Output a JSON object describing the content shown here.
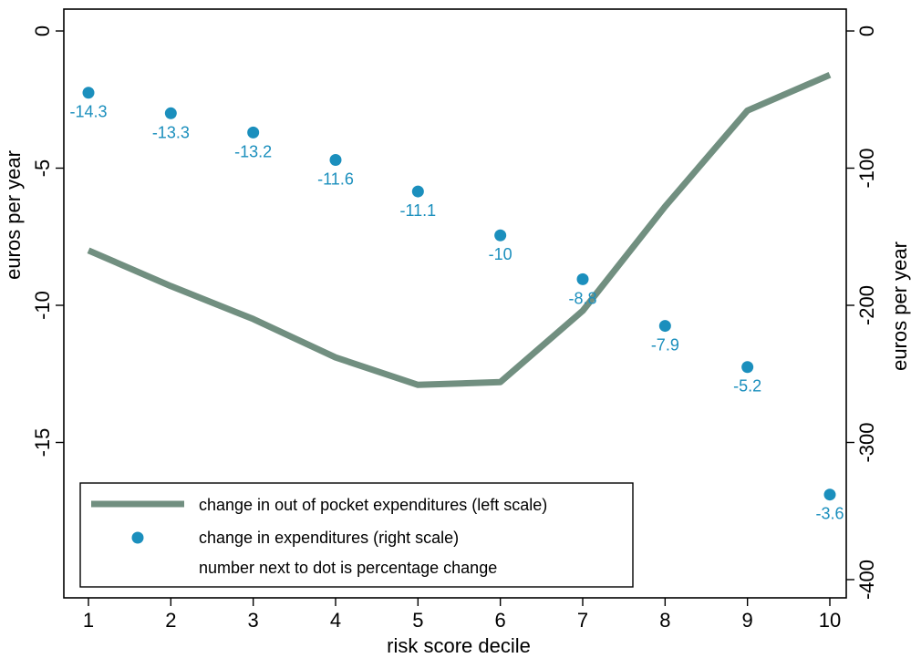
{
  "chart_data": {
    "type": "line",
    "xlabel": "risk score decile",
    "ylabel_left": "euros per year",
    "ylabel_right": "euros per year",
    "x_ticks": [
      1,
      2,
      3,
      4,
      5,
      6,
      7,
      8,
      9,
      10
    ],
    "left_axis": {
      "range": [
        -20,
        0
      ],
      "ticks": [
        0,
        -5,
        -10,
        -15
      ]
    },
    "right_axis": {
      "range": [
        -400,
        0
      ],
      "ticks": [
        0,
        -100,
        -200,
        -300,
        -400
      ]
    },
    "series": [
      {
        "name": "change in out of pocket expenditures (left scale)",
        "type": "line",
        "axis": "left",
        "color": "#718f80",
        "x": [
          1,
          2,
          3,
          4,
          5,
          6,
          7,
          8,
          9,
          10
        ],
        "y": [
          -8.0,
          -9.3,
          -10.5,
          -11.9,
          -12.9,
          -12.8,
          -10.2,
          -6.4,
          -2.9,
          -1.6
        ]
      },
      {
        "name": "change in expenditures (right scale)",
        "type": "scatter",
        "axis": "right",
        "color": "#1b8fbd",
        "x": [
          1,
          2,
          3,
          4,
          5,
          6,
          7,
          8,
          9,
          10
        ],
        "y": [
          -45,
          -60,
          -74,
          -94,
          -117,
          -149,
          -181,
          -215,
          -245,
          -338
        ],
        "labels": [
          "-14.3",
          "-13.3",
          "-13.2",
          "-11.6",
          "-11.1",
          "-10",
          "-8.8",
          "-7.9",
          "-5.2",
          "-3.6"
        ]
      }
    ],
    "legend": {
      "position": "bottom-left",
      "note": "number next to dot is percentage change"
    },
    "grid": false
  }
}
